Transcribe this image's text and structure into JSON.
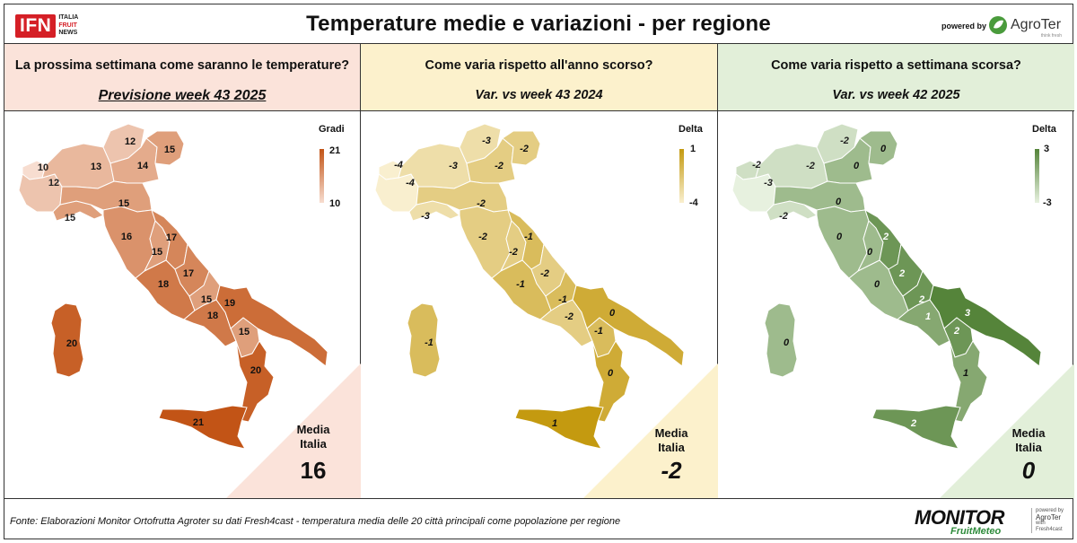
{
  "header": {
    "title": "Temperature medie e variazioni - per regione",
    "powered_by": "powered by",
    "ifn_logo": {
      "mark": "IFN",
      "line1": "ITALIA",
      "line2": "FRUIT",
      "line3": "NEWS"
    },
    "agroter_logo": {
      "name": "AgroTer",
      "tagline": "think fresh"
    }
  },
  "colors": {
    "panel1_header_bg": "#fbe3da",
    "panel2_header_bg": "#fcf1cc",
    "panel3_header_bg": "#e2efd9",
    "temp_high": "#c25416",
    "temp_low": "#f7ddd0",
    "var_year_high": "#c49a10",
    "var_year_low": "#f9efcf",
    "var_week_high": "#55843a",
    "var_week_low": "#e7f1df"
  },
  "panels": [
    {
      "id": "forecast",
      "question": "La prossima settimana come saranno le temperature?",
      "subtitle": "Previsione week 43 2025",
      "legend": {
        "title": "Gradi",
        "max": "21",
        "min": "10"
      },
      "avg": {
        "label_line1": "Media",
        "label_line2": "Italia",
        "value": "16"
      }
    },
    {
      "id": "var_year",
      "question": "Come varia rispetto all'anno scorso?",
      "subtitle": "Var. vs week 43 2024",
      "legend": {
        "title": "Delta",
        "max": "1",
        "min": "-4"
      },
      "avg": {
        "label_line1": "Media",
        "label_line2": "Italia",
        "value": "-2"
      }
    },
    {
      "id": "var_week",
      "question": "Come varia rispetto a settimana scorsa?",
      "subtitle": "Var. vs week 42 2025",
      "legend": {
        "title": "Delta",
        "max": "3",
        "min": "-3"
      },
      "avg": {
        "label_line1": "Media",
        "label_line2": "Italia",
        "value": "0"
      }
    }
  ],
  "chart_data": [
    {
      "type": "choropleth",
      "title": "Previsione week 43 2025",
      "legend_title": "Gradi",
      "range": [
        10,
        21
      ],
      "regions": [
        {
          "region": "Valle d'Aosta",
          "value": 10
        },
        {
          "region": "Piemonte",
          "value": 12
        },
        {
          "region": "Lombardia",
          "value": 13
        },
        {
          "region": "Trentino-Alto Adige",
          "value": 12
        },
        {
          "region": "Veneto",
          "value": 14
        },
        {
          "region": "Friuli-Venezia Giulia",
          "value": 15
        },
        {
          "region": "Liguria",
          "value": 15
        },
        {
          "region": "Emilia-Romagna",
          "value": 15
        },
        {
          "region": "Toscana",
          "value": 16
        },
        {
          "region": "Umbria",
          "value": 15
        },
        {
          "region": "Marche",
          "value": 17
        },
        {
          "region": "Lazio",
          "value": 18
        },
        {
          "region": "Abruzzo",
          "value": 17
        },
        {
          "region": "Molise",
          "value": 15
        },
        {
          "region": "Campania",
          "value": 18
        },
        {
          "region": "Puglia",
          "value": 19
        },
        {
          "region": "Basilicata",
          "value": 15
        },
        {
          "region": "Calabria",
          "value": 20
        },
        {
          "region": "Sicilia",
          "value": 21
        },
        {
          "region": "Sardegna",
          "value": 20
        }
      ],
      "average": 16
    },
    {
      "type": "choropleth",
      "title": "Var. vs week 43 2024",
      "legend_title": "Delta",
      "range": [
        -4,
        1
      ],
      "regions": [
        {
          "region": "Valle d'Aosta",
          "value": -4
        },
        {
          "region": "Piemonte",
          "value": -4
        },
        {
          "region": "Lombardia",
          "value": -3
        },
        {
          "region": "Trentino-Alto Adige",
          "value": -3
        },
        {
          "region": "Veneto",
          "value": -2
        },
        {
          "region": "Friuli-Venezia Giulia",
          "value": -2
        },
        {
          "region": "Liguria",
          "value": -3
        },
        {
          "region": "Emilia-Romagna",
          "value": -2
        },
        {
          "region": "Toscana",
          "value": -2
        },
        {
          "region": "Umbria",
          "value": -2
        },
        {
          "region": "Marche",
          "value": -1
        },
        {
          "region": "Lazio",
          "value": -1
        },
        {
          "region": "Abruzzo",
          "value": -2
        },
        {
          "region": "Molise",
          "value": -1
        },
        {
          "region": "Campania",
          "value": -2
        },
        {
          "region": "Puglia",
          "value": 0
        },
        {
          "region": "Basilicata",
          "value": -1
        },
        {
          "region": "Calabria",
          "value": 0
        },
        {
          "region": "Sicilia",
          "value": 1
        },
        {
          "region": "Sardegna",
          "value": -1
        }
      ],
      "average": -2
    },
    {
      "type": "choropleth",
      "title": "Var. vs week 42 2025",
      "legend_title": "Delta",
      "range": [
        -3,
        3
      ],
      "regions": [
        {
          "region": "Valle d'Aosta",
          "value": -2
        },
        {
          "region": "Piemonte",
          "value": -3
        },
        {
          "region": "Lombardia",
          "value": -2
        },
        {
          "region": "Trentino-Alto Adige",
          "value": -2
        },
        {
          "region": "Veneto",
          "value": 0
        },
        {
          "region": "Friuli-Venezia Giulia",
          "value": 0
        },
        {
          "region": "Liguria",
          "value": -2
        },
        {
          "region": "Emilia-Romagna",
          "value": 0
        },
        {
          "region": "Toscana",
          "value": 0
        },
        {
          "region": "Umbria",
          "value": 0
        },
        {
          "region": "Marche",
          "value": 2
        },
        {
          "region": "Lazio",
          "value": 0
        },
        {
          "region": "Abruzzo",
          "value": 2
        },
        {
          "region": "Molise",
          "value": 2
        },
        {
          "region": "Campania",
          "value": 1
        },
        {
          "region": "Puglia",
          "value": 3
        },
        {
          "region": "Basilicata",
          "value": 2
        },
        {
          "region": "Calabria",
          "value": 1
        },
        {
          "region": "Sicilia",
          "value": 2
        },
        {
          "region": "Sardegna",
          "value": 0
        }
      ],
      "average": 0
    }
  ],
  "footer": {
    "source": "Fonte: Elaborazioni Monitor Ortofrutta Agroter su dati Fresh4cast - temperatura media delle 20 città principali come popolazione per regione",
    "monitor_logo": {
      "title": "MONITOR",
      "subtitle": "FruitMeteo",
      "side1": "powered by",
      "side2": "AgroTer",
      "side3": "with",
      "side4": "Fresh4cast"
    }
  }
}
